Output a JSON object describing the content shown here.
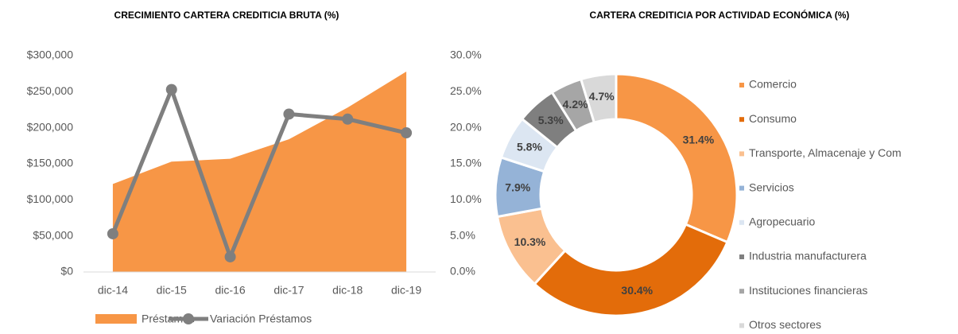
{
  "chart_data": [
    {
      "type": "area-line",
      "title": "CRECIMIENTO CARTERA CREDITICIA BRUTA (%)",
      "categories": [
        "dic-14",
        "dic-15",
        "dic-16",
        "dic-17",
        "dic-18",
        "dic-19"
      ],
      "series": [
        {
          "name": "Préstamos",
          "type": "area",
          "color": "#f79646",
          "values": [
            122000,
            153000,
            157000,
            184000,
            228000,
            278000
          ]
        },
        {
          "name": "Variación Préstamos",
          "type": "line",
          "axis": "y2",
          "color": "#7f7f7f",
          "values": [
            5.3,
            25.3,
            2.1,
            21.9,
            21.2,
            19.3
          ]
        }
      ],
      "ylim": [
        0,
        300000
      ],
      "yticks": [
        {
          "value": 0,
          "label": "$0"
        },
        {
          "value": 50000,
          "label": "$50,000"
        },
        {
          "value": 100000,
          "label": "$100,000"
        },
        {
          "value": 150000,
          "label": "$150,000"
        },
        {
          "value": 200000,
          "label": "$200,000"
        },
        {
          "value": 250000,
          "label": "$250,000"
        },
        {
          "value": 300000,
          "label": "$300,000"
        }
      ],
      "y2lim": [
        0,
        30
      ],
      "y2ticks": [
        {
          "value": 0,
          "label": "0.0%"
        },
        {
          "value": 5,
          "label": "5.0%"
        },
        {
          "value": 10,
          "label": "10.0%"
        },
        {
          "value": 15,
          "label": "15.0%"
        },
        {
          "value": 20,
          "label": "20.0%"
        },
        {
          "value": 25,
          "label": "25.0%"
        },
        {
          "value": 30,
          "label": "30.0%"
        }
      ],
      "legend": "bottom"
    },
    {
      "type": "donut",
      "title": "CARTERA CREDITICIA POR ACTIVIDAD ECONÓMICA (%)",
      "categories": [
        "Comercio",
        "Consumo",
        "Transporte, Almacenaje y Com",
        "Servicios",
        "Agropecuario",
        "Industria manufacturera",
        "Instituciones financieras",
        "Otros sectores"
      ],
      "values": [
        31.4,
        30.4,
        10.3,
        7.9,
        5.8,
        5.3,
        4.2,
        4.7
      ],
      "value_labels": [
        "31.4%",
        "30.4%",
        "10.3%",
        "7.9%",
        "5.8%",
        "5.3%",
        "4.2%",
        "4.7%"
      ],
      "colors": [
        "#f79646",
        "#e36c0a",
        "#fac090",
        "#95b3d7",
        "#dce6f2",
        "#7f7f7f",
        "#a6a6a6",
        "#d9d9d9"
      ],
      "legend": "right"
    }
  ]
}
